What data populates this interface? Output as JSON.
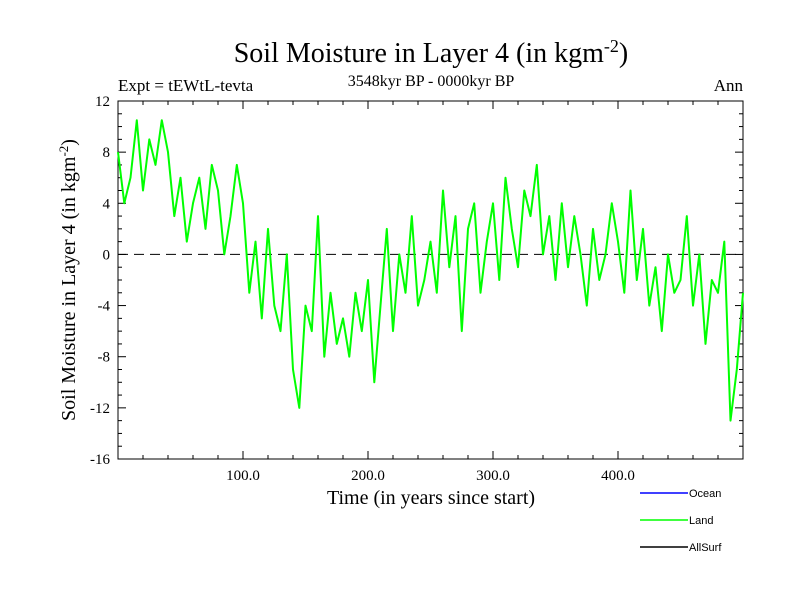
{
  "chart_data": {
    "type": "line",
    "title": "Soil Moisture in Layer 4 (in kgm",
    "title_superscript": "-2",
    "title_close": ")",
    "subtitle": "3548kyr BP - 0000kyr BP",
    "left_label": "Expt = tEWtL-tevta",
    "right_label": "Ann",
    "xlabel": "Time (in years since start)",
    "ylabel": "Soil Moisture in Layer 4 (in kgm",
    "ylabel_superscript": "-2",
    "ylabel_close": ")",
    "xlim": [
      0,
      500
    ],
    "ylim": [
      -16,
      12
    ],
    "xticks": [
      100,
      200,
      300,
      400
    ],
    "xtick_labels": [
      "100.0",
      "200.0",
      "300.0",
      "400.0"
    ],
    "yticks": [
      -16,
      -12,
      -8,
      -4,
      0,
      4,
      8,
      12
    ],
    "ytick_labels": [
      "-16",
      "-12",
      "-8",
      "-4",
      "0",
      "4",
      "8",
      "12"
    ],
    "zero_line": true,
    "legend": [
      {
        "name": "Ocean",
        "color": "#0000ff"
      },
      {
        "name": "Land",
        "color": "#00ff00"
      },
      {
        "name": "AllSurf",
        "color": "#000000"
      }
    ],
    "series": [
      {
        "name": "Land",
        "color": "#00ff00",
        "x": [
          0,
          5,
          10,
          15,
          20,
          25,
          30,
          35,
          40,
          45,
          50,
          55,
          60,
          65,
          70,
          75,
          80,
          85,
          90,
          95,
          100,
          105,
          110,
          115,
          120,
          125,
          130,
          135,
          140,
          145,
          150,
          155,
          160,
          165,
          170,
          175,
          180,
          185,
          190,
          195,
          200,
          205,
          210,
          215,
          220,
          225,
          230,
          235,
          240,
          245,
          250,
          255,
          260,
          265,
          270,
          275,
          280,
          285,
          290,
          295,
          300,
          305,
          310,
          315,
          320,
          325,
          330,
          335,
          340,
          345,
          350,
          355,
          360,
          365,
          370,
          375,
          380,
          385,
          390,
          395,
          400,
          405,
          410,
          415,
          420,
          425,
          430,
          435,
          440,
          445,
          450,
          455,
          460,
          465,
          470,
          475,
          480,
          485,
          490,
          495,
          500
        ],
        "values": [
          8,
          4,
          6,
          10.5,
          5,
          9,
          7,
          10.5,
          8,
          3,
          6,
          1,
          4,
          6,
          2,
          7,
          5,
          0,
          3,
          7,
          4,
          -3,
          1,
          -5,
          2,
          -4,
          -6,
          0,
          -9,
          -12,
          -4,
          -6,
          3,
          -8,
          -3,
          -7,
          -5,
          -8,
          -3,
          -6,
          -2,
          -10,
          -4,
          2,
          -6,
          0,
          -3,
          3,
          -4,
          -2,
          1,
          -3,
          5,
          -1,
          3,
          -6,
          2,
          4,
          -3,
          1,
          4,
          -2,
          6,
          2,
          -1,
          5,
          3,
          7,
          0,
          3,
          -2,
          4,
          -1,
          3,
          0,
          -4,
          2,
          -2,
          0,
          4,
          1,
          -3,
          5,
          -2,
          2,
          -4,
          -1,
          -6,
          0,
          -3,
          -2,
          3,
          -4,
          0,
          -7,
          -2,
          -3,
          1,
          -13,
          -9,
          -3
        ]
      }
    ]
  }
}
